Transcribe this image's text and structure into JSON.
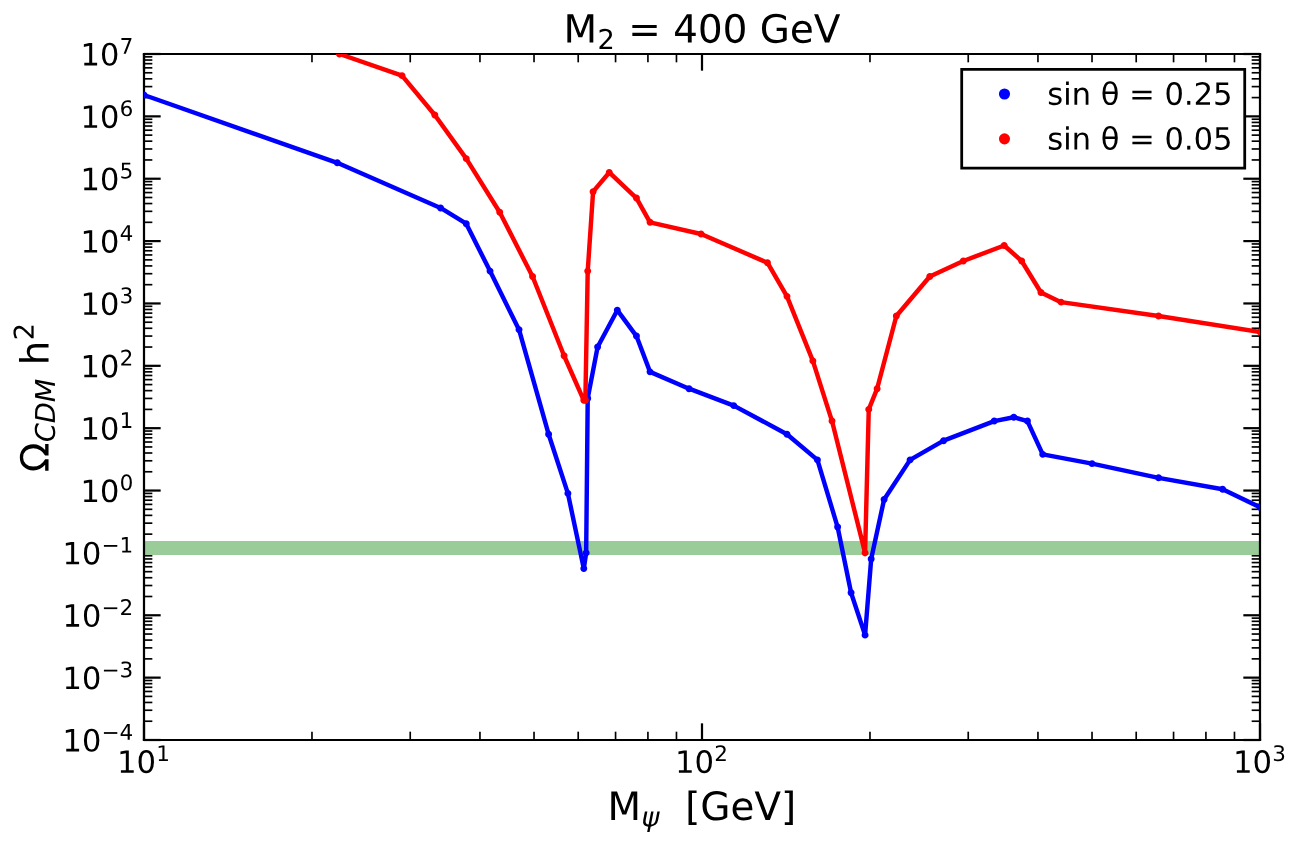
{
  "chart_data": {
    "type": "line",
    "title": "M$_{2}$ = 400 GeV",
    "xlabel": "M$_{ψ}$  [GeV]",
    "ylabel": "Ω$_{CDM}$ h$^{2}$",
    "log": "xy",
    "grid": false,
    "legend": "top right",
    "marker": "circle",
    "xlim": [
      10,
      1000
    ],
    "xticks": [
      {
        "value": 10,
        "label": "10$^{1}$"
      },
      {
        "value": 100,
        "label": "10$^{2}$"
      },
      {
        "value": 1000,
        "label": "10$^{3}$"
      }
    ],
    "ylim": [
      0.0001,
      10000000
    ],
    "yticks": [
      {
        "value": 0.0001,
        "label": "10$^{−4}$"
      },
      {
        "value": 0.001,
        "label": "10$^{−3}$"
      },
      {
        "value": 0.01,
        "label": "10$^{−2}$"
      },
      {
        "value": 0.1,
        "label": "10$^{−1}$"
      },
      {
        "value": 1,
        "label": "10$^{0}$"
      },
      {
        "value": 10,
        "label": "10$^{1}$"
      },
      {
        "value": 100,
        "label": "10$^{2}$"
      },
      {
        "value": 1000,
        "label": "10$^{3}$"
      },
      {
        "value": 10000,
        "label": "10$^{4}$"
      },
      {
        "value": 100000,
        "label": "10$^{5}$"
      },
      {
        "value": 1000000,
        "label": "10$^{6}$"
      },
      {
        "value": 10000000,
        "label": "10$^{7}$"
      }
    ],
    "ref_lines": [
      {
        "axis": "y",
        "value": 0.12,
        "color": "#99cc99"
      }
    ],
    "series": [
      {
        "name": "sin θ = 0.25",
        "color": "#0000ff",
        "x": [
          10,
          22.2,
          34,
          37.8,
          41.7,
          47,
          53.1,
          57.5,
          61.4,
          62.0,
          62.4,
          65,
          70.5,
          76.3,
          80.7,
          94.8,
          114,
          142,
          161,
          175,
          185,
          196,
          201,
          212,
          236,
          271,
          334,
          362,
          383,
          408,
          500,
          658,
          857,
          1000
        ],
        "values": [
          2200000.0,
          180000.0,
          34000.0,
          19000.0,
          3300.0,
          380,
          8,
          0.9,
          0.056,
          0.1,
          30,
          200,
          780,
          300,
          80,
          43,
          23,
          8,
          3.1,
          0.26,
          0.023,
          0.0048,
          0.08,
          0.72,
          3.1,
          6.3,
          13,
          15,
          13,
          3.8,
          2.7,
          1.6,
          1.05,
          0.54
        ]
      },
      {
        "name": "sin θ = 0.05",
        "color": "#ff0000",
        "x": [
          22.4,
          29,
          33.2,
          37.8,
          43.4,
          49.7,
          56.6,
          61.4,
          61.8,
          62.4,
          63.8,
          68.2,
          76.3,
          80.7,
          99.6,
          131,
          142,
          158,
          171,
          196,
          199,
          206,
          223,
          256,
          294,
          348,
          374,
          405,
          440,
          658,
          1000
        ],
        "values": [
          10000000.0,
          4500000.0,
          1050000.0,
          210000.0,
          29000.0,
          2700.0,
          145,
          28,
          28,
          3300.0,
          62000.0,
          126000.0,
          49000.0,
          20000.0,
          13000.0,
          4500.0,
          1300.0,
          120,
          13,
          0.1,
          20,
          43,
          630,
          2700.0,
          4800.0,
          8500.0,
          4800.0,
          1500.0,
          1050.0,
          630,
          350
        ]
      }
    ]
  }
}
